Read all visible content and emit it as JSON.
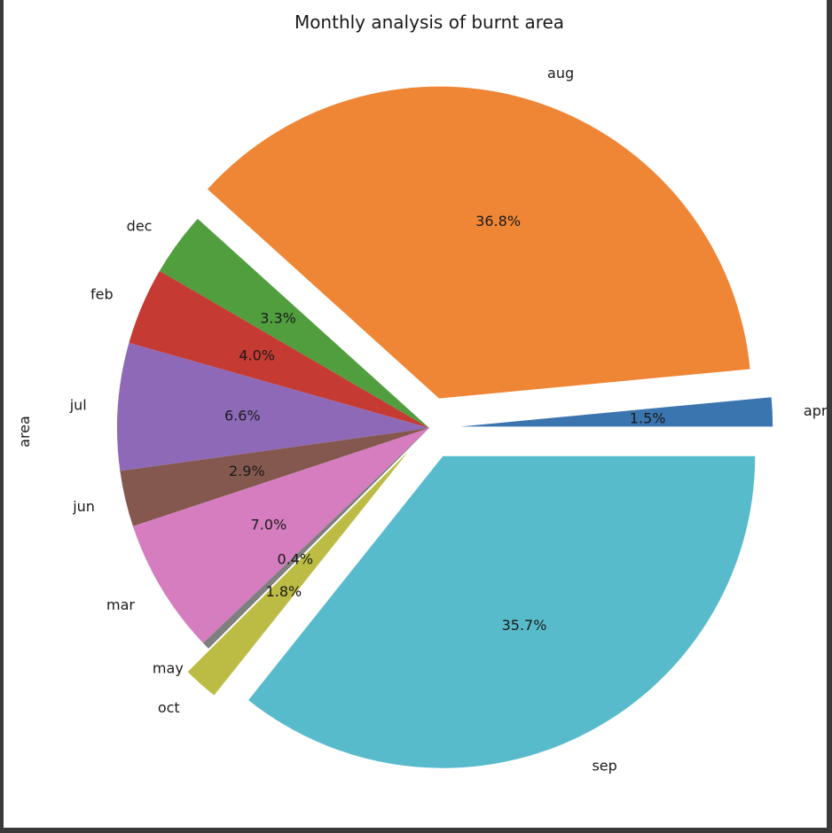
{
  "chart_data": {
    "type": "pie",
    "title": "Monthly analysis of burnt area",
    "ylabel": "area",
    "start_angle_deg": 0,
    "direction": "counterclockwise",
    "slices": [
      {
        "label": "apr",
        "value": 1.5,
        "pct_label": "1.5%",
        "color": "#3b75af",
        "explode": true
      },
      {
        "label": "aug",
        "value": 36.8,
        "pct_label": "36.8%",
        "color": "#ef8636",
        "explode": true
      },
      {
        "label": "dec",
        "value": 3.3,
        "pct_label": "3.3%",
        "color": "#519e3e",
        "explode": false
      },
      {
        "label": "feb",
        "value": 4.0,
        "pct_label": "4.0%",
        "color": "#c53a32",
        "explode": false
      },
      {
        "label": "jul",
        "value": 6.6,
        "pct_label": "6.6%",
        "color": "#8d69b8",
        "explode": false
      },
      {
        "label": "jun",
        "value": 2.9,
        "pct_label": "2.9%",
        "color": "#84584e",
        "explode": false
      },
      {
        "label": "mar",
        "value": 7.0,
        "pct_label": "7.0%",
        "color": "#d57dbf",
        "explode": false
      },
      {
        "label": "may",
        "value": 0.4,
        "pct_label": "0.4%",
        "color": "#7f7f7f",
        "explode": false
      },
      {
        "label": "oct",
        "value": 1.8,
        "pct_label": "1.8%",
        "color": "#bcbc45",
        "explode": true
      },
      {
        "label": "sep",
        "value": 35.7,
        "pct_label": "35.7%",
        "color": "#58bbcc",
        "explode": true
      }
    ]
  }
}
